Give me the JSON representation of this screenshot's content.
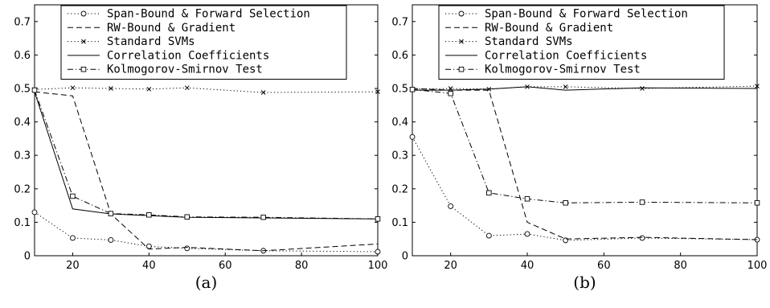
{
  "chart_data": [
    {
      "type": "line",
      "panel_label": "(a)",
      "xlim": [
        10,
        100
      ],
      "ylim": [
        0,
        0.75
      ],
      "xticks": [
        20,
        40,
        60,
        80,
        100
      ],
      "xtick_labels": [
        "20",
        "40",
        "60",
        "80",
        "100"
      ],
      "yticks": [
        0,
        0.1,
        0.2,
        0.3,
        0.4,
        0.5,
        0.6,
        0.7
      ],
      "ytick_labels": [
        "0",
        "0.1",
        "0.2",
        "0.3",
        "0.4",
        "0.5",
        "0.6",
        "0.7"
      ],
      "grid": false,
      "legend_position": "top",
      "series": [
        {
          "name": "Span-Bound & Forward Selection",
          "style": "dotted",
          "marker": "circle",
          "x": [
            10,
            20,
            30,
            40,
            50,
            70,
            100
          ],
          "y": [
            0.13,
            0.053,
            0.047,
            0.028,
            0.022,
            0.015,
            0.012
          ]
        },
        {
          "name": "RW-Bound & Gradient",
          "style": "dashed",
          "marker": "none",
          "x": [
            10,
            20,
            30,
            40,
            50,
            70,
            100
          ],
          "y": [
            0.49,
            0.478,
            0.125,
            0.02,
            0.025,
            0.015,
            0.035
          ]
        },
        {
          "name": "Standard SVMs",
          "style": "dotted",
          "marker": "x",
          "x": [
            10,
            20,
            30,
            40,
            50,
            70,
            100
          ],
          "y": [
            0.497,
            0.502,
            0.5,
            0.498,
            0.502,
            0.488,
            0.49
          ]
        },
        {
          "name": "Correlation Coefficients",
          "style": "solid",
          "marker": "none",
          "x": [
            10,
            20,
            30,
            40,
            50,
            70,
            100
          ],
          "y": [
            0.49,
            0.14,
            0.125,
            0.12,
            0.115,
            0.113,
            0.11
          ]
        },
        {
          "name": "Kolmogorov-Smirnov Test",
          "style": "dashdot",
          "marker": "square",
          "x": [
            10,
            20,
            30,
            40,
            50,
            70,
            100
          ],
          "y": [
            0.495,
            0.178,
            0.126,
            0.122,
            0.116,
            0.115,
            0.11
          ]
        }
      ]
    },
    {
      "type": "line",
      "panel_label": "(b)",
      "xlim": [
        10,
        100
      ],
      "ylim": [
        0,
        0.75
      ],
      "xticks": [
        20,
        40,
        60,
        80,
        100
      ],
      "xtick_labels": [
        "20",
        "40",
        "60",
        "80",
        "100"
      ],
      "yticks": [
        0,
        0.1,
        0.2,
        0.3,
        0.4,
        0.5,
        0.6,
        0.7
      ],
      "ytick_labels": [
        "0",
        "0.1",
        "0.2",
        "0.3",
        "0.4",
        "0.5",
        "0.6",
        "0.7"
      ],
      "grid": false,
      "legend_position": "top",
      "series": [
        {
          "name": "Span-Bound & Forward Selection",
          "style": "dotted",
          "marker": "circle",
          "x": [
            10,
            20,
            30,
            40,
            50,
            70,
            100
          ],
          "y": [
            0.355,
            0.148,
            0.06,
            0.065,
            0.046,
            0.053,
            0.048
          ]
        },
        {
          "name": "RW-Bound & Gradient",
          "style": "dashed",
          "marker": "none",
          "x": [
            10,
            20,
            30,
            40,
            50,
            70,
            100
          ],
          "y": [
            0.5,
            0.495,
            0.495,
            0.1,
            0.05,
            0.055,
            0.048
          ]
        },
        {
          "name": "Standard SVMs",
          "style": "dotted",
          "marker": "x",
          "x": [
            10,
            20,
            30,
            40,
            50,
            70,
            100
          ],
          "y": [
            0.498,
            0.5,
            0.498,
            0.505,
            0.505,
            0.5,
            0.507
          ]
        },
        {
          "name": "Correlation Coefficients",
          "style": "solid",
          "marker": "none",
          "x": [
            10,
            20,
            30,
            40,
            50,
            70,
            100
          ],
          "y": [
            0.495,
            0.495,
            0.498,
            0.505,
            0.495,
            0.502,
            0.5
          ]
        },
        {
          "name": "Kolmogorov-Smirnov Test",
          "style": "dashdot",
          "marker": "square",
          "x": [
            10,
            20,
            30,
            40,
            50,
            70,
            100
          ],
          "y": [
            0.497,
            0.485,
            0.188,
            0.17,
            0.158,
            0.16,
            0.158
          ]
        }
      ]
    }
  ]
}
